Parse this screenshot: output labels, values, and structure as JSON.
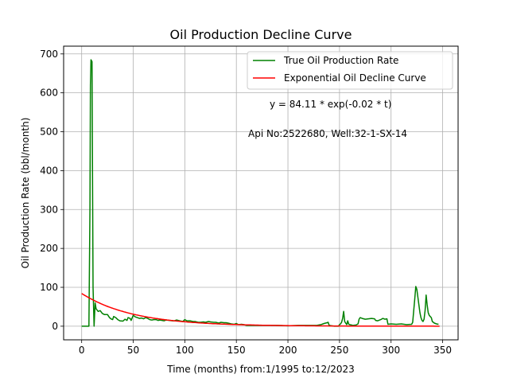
{
  "chart_data": {
    "type": "line",
    "title": "Oil Production Decline Curve",
    "xlabel": "Time (months) from:1/1995 to:12/2023",
    "ylabel": "Oil Production Rate (bbl/month)",
    "xlim": [
      -17.5,
      365
    ],
    "ylim": [
      -35,
      720
    ],
    "xticks": [
      0,
      50,
      100,
      150,
      200,
      250,
      300,
      350
    ],
    "yticks": [
      0,
      100,
      200,
      300,
      400,
      500,
      600,
      700
    ],
    "grid": true,
    "legend_position": "top-right",
    "annotations": [
      "y = 84.11 * exp(-0.02 * t)",
      "Api No:2522680, Well:32-1-SX-14"
    ],
    "series": [
      {
        "name": "True Oil Production Rate",
        "color": "#008000",
        "points": [
          [
            0,
            0
          ],
          [
            5,
            0
          ],
          [
            7,
            0
          ],
          [
            8,
            300
          ],
          [
            8.5,
            620
          ],
          [
            9,
            685
          ],
          [
            10,
            680
          ],
          [
            10.5,
            400
          ],
          [
            11,
            100
          ],
          [
            12,
            0
          ],
          [
            13,
            60
          ],
          [
            14,
            45
          ],
          [
            16,
            38
          ],
          [
            18,
            40
          ],
          [
            20,
            33
          ],
          [
            22,
            30
          ],
          [
            25,
            30
          ],
          [
            27,
            22
          ],
          [
            29,
            18
          ],
          [
            30,
            17
          ],
          [
            31,
            25
          ],
          [
            33,
            22
          ],
          [
            35,
            17
          ],
          [
            37,
            14
          ],
          [
            40,
            13
          ],
          [
            42,
            18
          ],
          [
            44,
            15
          ],
          [
            45,
            22
          ],
          [
            47,
            20
          ],
          [
            48,
            15
          ],
          [
            50,
            28
          ],
          [
            52,
            24
          ],
          [
            54,
            22
          ],
          [
            56,
            20
          ],
          [
            58,
            21
          ],
          [
            60,
            19
          ],
          [
            62,
            22
          ],
          [
            64,
            20
          ],
          [
            66,
            17
          ],
          [
            68,
            16
          ],
          [
            70,
            17
          ],
          [
            72,
            17
          ],
          [
            74,
            15
          ],
          [
            76,
            16
          ],
          [
            78,
            15
          ],
          [
            80,
            14
          ],
          [
            82,
            16
          ],
          [
            85,
            15
          ],
          [
            88,
            14
          ],
          [
            90,
            14
          ],
          [
            92,
            16
          ],
          [
            95,
            14
          ],
          [
            98,
            12
          ],
          [
            100,
            17
          ],
          [
            102,
            14
          ],
          [
            105,
            14
          ],
          [
            108,
            12
          ],
          [
            110,
            12
          ],
          [
            113,
            10
          ],
          [
            115,
            10
          ],
          [
            118,
            11
          ],
          [
            120,
            10
          ],
          [
            123,
            12
          ],
          [
            125,
            11
          ],
          [
            128,
            10
          ],
          [
            130,
            10
          ],
          [
            133,
            8
          ],
          [
            135,
            10
          ],
          [
            138,
            9
          ],
          [
            140,
            9
          ],
          [
            142,
            8
          ],
          [
            145,
            6
          ],
          [
            148,
            5
          ],
          [
            150,
            7
          ],
          [
            152,
            4
          ],
          [
            155,
            5
          ],
          [
            157,
            4
          ],
          [
            160,
            2
          ],
          [
            165,
            2
          ],
          [
            170,
            2
          ],
          [
            180,
            2
          ],
          [
            190,
            2
          ],
          [
            200,
            1
          ],
          [
            210,
            2
          ],
          [
            220,
            2
          ],
          [
            228,
            2
          ],
          [
            232,
            4
          ],
          [
            235,
            7
          ],
          [
            238,
            9
          ],
          [
            239,
            10
          ],
          [
            240,
            2
          ],
          [
            245,
            0
          ],
          [
            249,
            0
          ],
          [
            250,
            4
          ],
          [
            251,
            6
          ],
          [
            252,
            10
          ],
          [
            253,
            20
          ],
          [
            254,
            38
          ],
          [
            255,
            12
          ],
          [
            256,
            8
          ],
          [
            257,
            4
          ],
          [
            258,
            14
          ],
          [
            259,
            5
          ],
          [
            260,
            4
          ],
          [
            263,
            2
          ],
          [
            266,
            3
          ],
          [
            268,
            6
          ],
          [
            269,
            18
          ],
          [
            270,
            22
          ],
          [
            272,
            20
          ],
          [
            275,
            18
          ],
          [
            278,
            19
          ],
          [
            281,
            20
          ],
          [
            284,
            19
          ],
          [
            285,
            15
          ],
          [
            287,
            14
          ],
          [
            290,
            17
          ],
          [
            292,
            20
          ],
          [
            294,
            18
          ],
          [
            296,
            19
          ],
          [
            297,
            5
          ],
          [
            300,
            6
          ],
          [
            305,
            5
          ],
          [
            310,
            6
          ],
          [
            315,
            4
          ],
          [
            320,
            5
          ],
          [
            321,
            10
          ],
          [
            322,
            40
          ],
          [
            323,
            70
          ],
          [
            324,
            102
          ],
          [
            325,
            95
          ],
          [
            326,
            75
          ],
          [
            327,
            55
          ],
          [
            328,
            35
          ],
          [
            329,
            22
          ],
          [
            330,
            15
          ],
          [
            331,
            12
          ],
          [
            332,
            18
          ],
          [
            333,
            40
          ],
          [
            334,
            80
          ],
          [
            335,
            55
          ],
          [
            336,
            35
          ],
          [
            337,
            28
          ],
          [
            338,
            25
          ],
          [
            339,
            22
          ],
          [
            340,
            12
          ],
          [
            342,
            8
          ],
          [
            344,
            6
          ],
          [
            346,
            5
          ]
        ]
      },
      {
        "name": "Exponential Oil Decline Curve",
        "color": "#ff0000",
        "a": 84.11,
        "b": 0.02,
        "t_max": 347
      }
    ]
  }
}
